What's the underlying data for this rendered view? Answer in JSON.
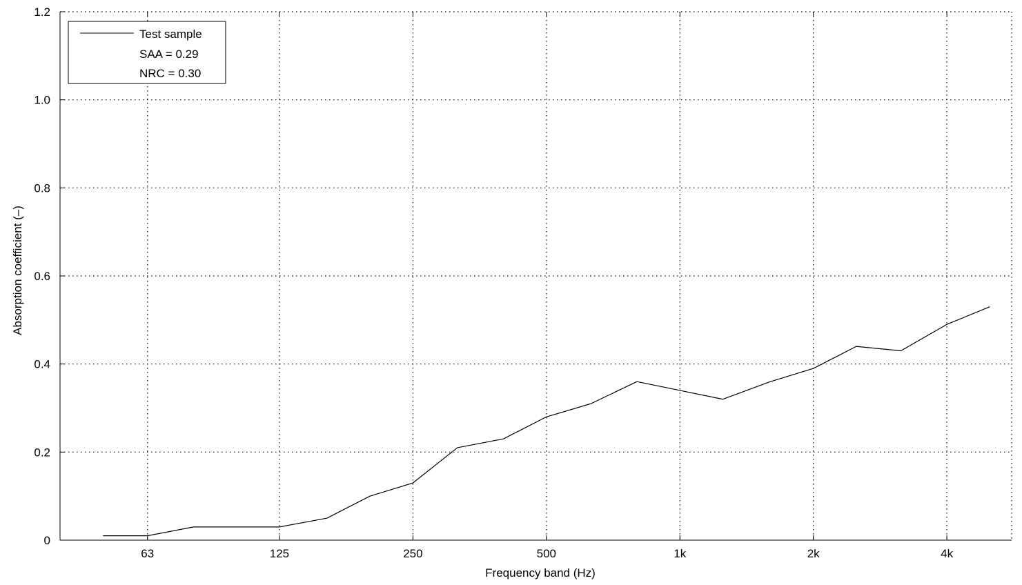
{
  "chart_data": {
    "type": "line",
    "title": "",
    "xlabel": "Frequency band (Hz)",
    "ylabel": "Absorption coefficient (–)",
    "x_scale": "log",
    "x_unit": "Hz",
    "xlim": [
      40,
      5600
    ],
    "ylim": [
      0,
      1.2
    ],
    "grid": true,
    "legend_position": "top-left",
    "x_ticks": [
      {
        "value": 63,
        "label": "63"
      },
      {
        "value": 125,
        "label": "125"
      },
      {
        "value": 250,
        "label": "250"
      },
      {
        "value": 500,
        "label": "500"
      },
      {
        "value": 1000,
        "label": "1k"
      },
      {
        "value": 2000,
        "label": "2k"
      },
      {
        "value": 4000,
        "label": "4k"
      }
    ],
    "y_ticks": [
      {
        "value": 0,
        "label": "0"
      },
      {
        "value": 0.2,
        "label": "0.2"
      },
      {
        "value": 0.4,
        "label": "0.4"
      },
      {
        "value": 0.6,
        "label": "0.6"
      },
      {
        "value": 0.8,
        "label": "0.8"
      },
      {
        "value": 1.0,
        "label": "1.0"
      },
      {
        "value": 1.2,
        "label": "1.2"
      }
    ],
    "series": [
      {
        "name": "Test sample",
        "color": "#000000",
        "x": [
          50,
          63,
          80,
          100,
          125,
          160,
          200,
          250,
          315,
          400,
          500,
          630,
          800,
          1000,
          1250,
          1600,
          2000,
          2500,
          3150,
          4000,
          5000
        ],
        "values": [
          0.01,
          0.01,
          0.03,
          0.03,
          0.03,
          0.05,
          0.1,
          0.13,
          0.21,
          0.23,
          0.28,
          0.31,
          0.36,
          0.34,
          0.32,
          0.36,
          0.39,
          0.44,
          0.43,
          0.49,
          0.53
        ]
      }
    ],
    "legend": {
      "entries": [
        "Test sample"
      ],
      "notes": [
        "SAA = 0.29",
        "NRC = 0.30"
      ]
    }
  }
}
